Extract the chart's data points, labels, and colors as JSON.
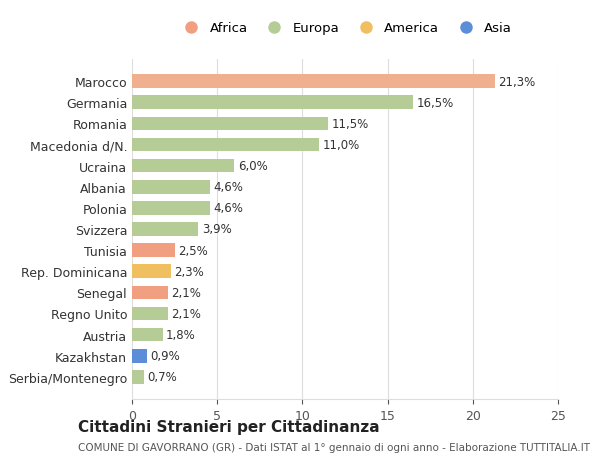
{
  "countries": [
    "Serbia/Montenegro",
    "Kazakhstan",
    "Austria",
    "Regno Unito",
    "Senegal",
    "Rep. Dominicana",
    "Tunisia",
    "Svizzera",
    "Polonia",
    "Albania",
    "Ucraina",
    "Macedonia d/N.",
    "Romania",
    "Germania",
    "Marocco"
  ],
  "values": [
    0.7,
    0.9,
    1.8,
    2.1,
    2.1,
    2.3,
    2.5,
    3.9,
    4.6,
    4.6,
    6.0,
    11.0,
    11.5,
    16.5,
    21.3
  ],
  "labels": [
    "0,7%",
    "0,9%",
    "1,8%",
    "2,1%",
    "2,1%",
    "2,3%",
    "2,5%",
    "3,9%",
    "4,6%",
    "4,6%",
    "6,0%",
    "11,0%",
    "11,5%",
    "16,5%",
    "21,3%"
  ],
  "colors": [
    "#b5cc96",
    "#5b8dd9",
    "#b5cc96",
    "#b5cc96",
    "#f0a080",
    "#f0c060",
    "#f0a080",
    "#b5cc96",
    "#b5cc96",
    "#b5cc96",
    "#b5cc96",
    "#b5cc96",
    "#b5cc96",
    "#b5cc96",
    "#f0b090"
  ],
  "legend_labels": [
    "Africa",
    "Europa",
    "America",
    "Asia"
  ],
  "legend_colors": [
    "#f0a080",
    "#b5cc96",
    "#f0c060",
    "#5b8dd9"
  ],
  "title": "Cittadini Stranieri per Cittadinanza",
  "subtitle": "COMUNE DI GAVORRANO (GR) - Dati ISTAT al 1° gennaio di ogni anno - Elaborazione TUTTITALIA.IT",
  "xlim": [
    0,
    25
  ],
  "xticks": [
    0,
    5,
    10,
    15,
    20,
    25
  ],
  "bg_color": "#ffffff",
  "grid_color": "#dddddd",
  "bar_height": 0.65
}
